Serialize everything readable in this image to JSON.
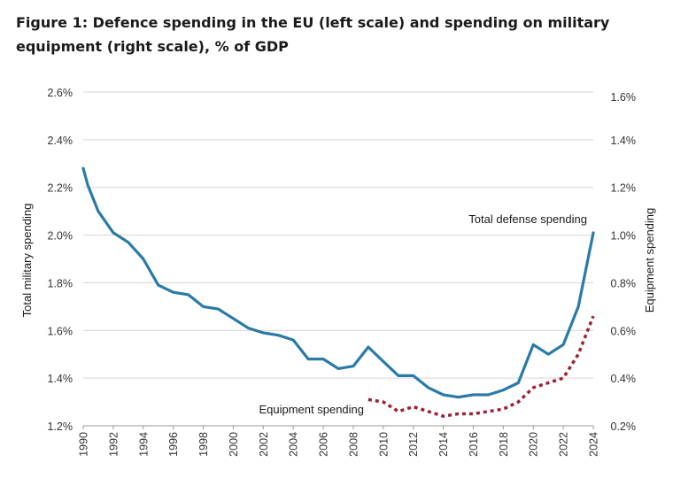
{
  "chart_data": {
    "type": "line",
    "title": "Figure 1: Defence spending in the EU (left scale) and spending on military equipment (right scale), % of GDP",
    "ylabel_left": "Total military spending",
    "ylabel_right": "Equipment spending",
    "ylim_left": [
      1.2,
      2.6
    ],
    "ylim_right": [
      0.2,
      1.6
    ],
    "yticks_left": [
      "1.2%",
      "1.4%",
      "1.6%",
      "1.8%",
      "2.0%",
      "2.2%",
      "2.4%",
      "2.6%"
    ],
    "yticks_right": [
      "0.2%",
      "0.4%",
      "0.6%",
      "0.8%",
      "1.0%",
      "1.2%",
      "1.4%",
      "1.6%"
    ],
    "xticks": [
      "1990",
      "1992",
      "1994",
      "1996",
      "1998",
      "2000",
      "2002",
      "2004",
      "2006",
      "2008",
      "2010",
      "2012",
      "2014",
      "2016",
      "2018",
      "2020",
      "2022",
      "2024"
    ],
    "xlim": [
      1990,
      2024
    ],
    "grid": true,
    "series": [
      {
        "name": "Total defense spending",
        "axis": "left",
        "style": "solid",
        "color": "#2a7aa8",
        "x": [
          1990,
          1990.3,
          1991,
          1992,
          1993,
          1994,
          1995,
          1996,
          1997,
          1998,
          1999,
          2000,
          2001,
          2002,
          2003,
          2004,
          2005,
          2006,
          2007,
          2008,
          2009,
          2010,
          2011,
          2012,
          2013,
          2014,
          2015,
          2016,
          2017,
          2018,
          2019,
          2020,
          2021,
          2022,
          2023,
          2024
        ],
        "values": [
          2.28,
          2.21,
          2.1,
          2.01,
          1.97,
          1.9,
          1.79,
          1.76,
          1.75,
          1.7,
          1.69,
          1.65,
          1.61,
          1.59,
          1.58,
          1.56,
          1.48,
          1.48,
          1.44,
          1.45,
          1.53,
          1.47,
          1.41,
          1.41,
          1.36,
          1.33,
          1.32,
          1.33,
          1.33,
          1.35,
          1.38,
          1.54,
          1.5,
          1.54,
          1.7,
          2.01
        ]
      },
      {
        "name": "Equipment spending",
        "axis": "right",
        "style": "dashed",
        "color": "#9b2335",
        "x": [
          2009,
          2010,
          2011,
          2012,
          2013,
          2014,
          2015,
          2016,
          2017,
          2018,
          2019,
          2020,
          2021,
          2022,
          2023,
          2024
        ],
        "values": [
          0.31,
          0.3,
          0.26,
          0.28,
          0.26,
          0.24,
          0.25,
          0.25,
          0.26,
          0.27,
          0.3,
          0.36,
          0.38,
          0.4,
          0.5,
          0.66
        ]
      }
    ]
  }
}
